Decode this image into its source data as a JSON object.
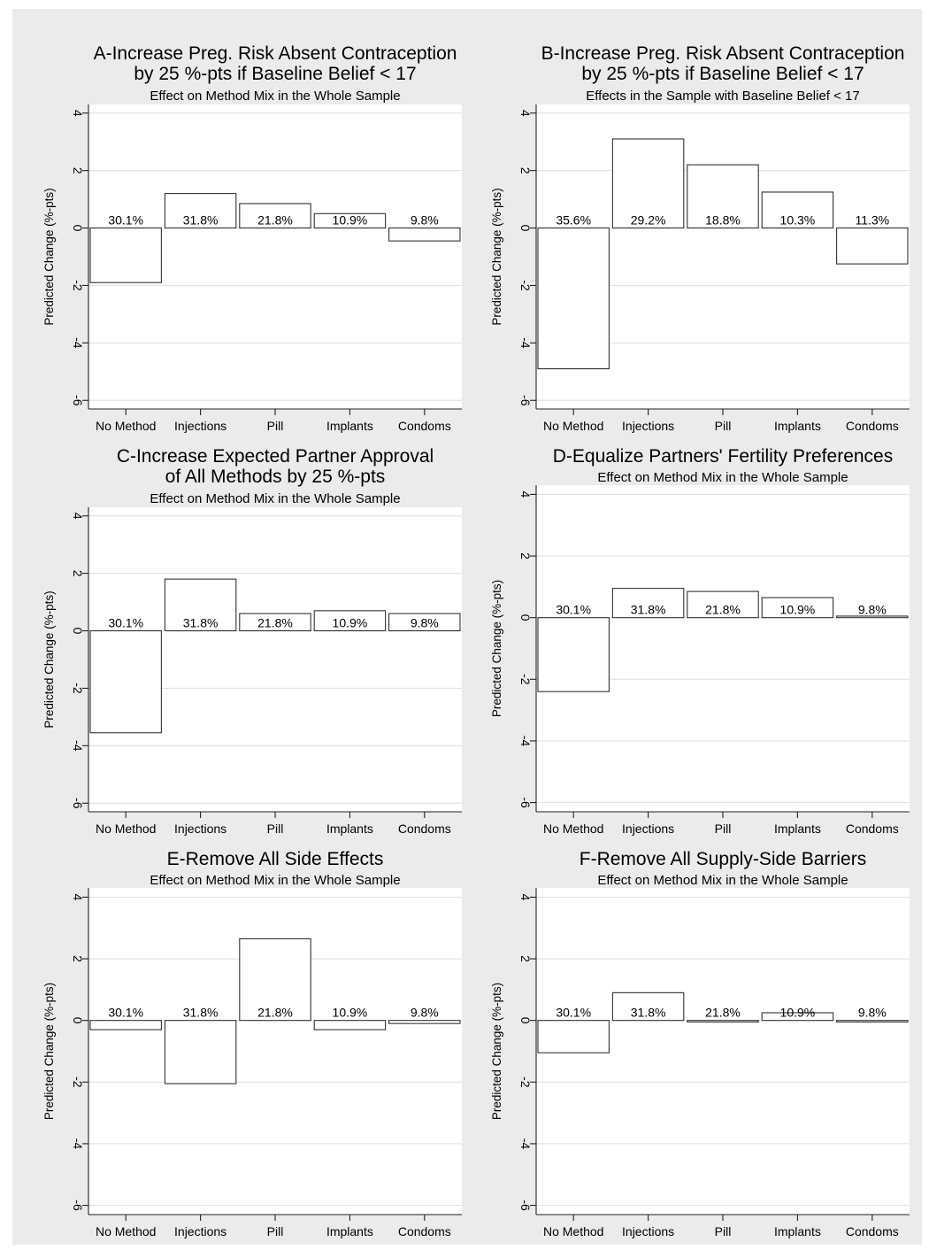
{
  "chart_data": [
    {
      "type": "bar",
      "title_lines": [
        "A-Increase Preg. Risk Absent Contraception",
        "by 25 %-pts if Baseline Belief < 17"
      ],
      "subtitle": "Effect on Method Mix in the Whole Sample",
      "ylabel": "Predicted Change (%-pts)",
      "categories": [
        "No Method",
        "Injections",
        "Pill",
        "Implants",
        "Condoms"
      ],
      "values": [
        -1.9,
        1.2,
        0.85,
        0.5,
        -0.45
      ],
      "bar_labels": [
        "30.1%",
        "31.8%",
        "21.8%",
        "10.9%",
        "9.8%"
      ],
      "ylim": [
        -6,
        4
      ],
      "yticks": [
        "-6",
        "-4",
        "-2",
        "0",
        "2",
        "4"
      ],
      "grid": true
    },
    {
      "type": "bar",
      "title_lines": [
        "B-Increase Preg. Risk Absent Contraception",
        "by 25 %-pts if Baseline Belief < 17"
      ],
      "subtitle": "Effects in the Sample with Baseline Belief < 17",
      "ylabel": "Predicted Change (%-pts)",
      "categories": [
        "No Method",
        "Injections",
        "Pill",
        "Implants",
        "Condoms"
      ],
      "values": [
        -4.9,
        3.1,
        2.2,
        1.25,
        -1.25
      ],
      "bar_labels": [
        "35.6%",
        "29.2%",
        "18.8%",
        "10.3%",
        "11.3%"
      ],
      "ylim": [
        -6,
        4
      ],
      "yticks": [
        "-6",
        "-4",
        "-2",
        "0",
        "2",
        "4"
      ],
      "grid": true
    },
    {
      "type": "bar",
      "title_lines": [
        "C-Increase Expected Partner Approval",
        "of All Methods by 25 %-pts"
      ],
      "subtitle": "Effect on Method Mix in the Whole Sample",
      "ylabel": "Predicted Change (%-pts)",
      "categories": [
        "No Method",
        "Injections",
        "Pill",
        "Implants",
        "Condoms"
      ],
      "values": [
        -3.55,
        1.8,
        0.6,
        0.7,
        0.6
      ],
      "bar_labels": [
        "30.1%",
        "31.8%",
        "21.8%",
        "10.9%",
        "9.8%"
      ],
      "ylim": [
        -6,
        4
      ],
      "yticks": [
        "-6",
        "-4",
        "-2",
        "0",
        "2",
        "4"
      ],
      "grid": true
    },
    {
      "type": "bar",
      "title_lines": [
        "D-Equalize Partners' Fertility Preferences"
      ],
      "subtitle": "Effect on Method Mix in the Whole Sample",
      "ylabel": "Predicted Change (%-pts)",
      "categories": [
        "No Method",
        "Injections",
        "Pill",
        "Implants",
        "Condoms"
      ],
      "values": [
        -2.4,
        0.95,
        0.85,
        0.65,
        0.05
      ],
      "bar_labels": [
        "30.1%",
        "31.8%",
        "21.8%",
        "10.9%",
        "9.8%"
      ],
      "ylim": [
        -6,
        4
      ],
      "yticks": [
        "-6",
        "-4",
        "-2",
        "0",
        "2",
        "4"
      ],
      "grid": true
    },
    {
      "type": "bar",
      "title_lines": [
        "E-Remove All Side Effects"
      ],
      "subtitle": "Effect on Method Mix in the Whole Sample",
      "ylabel": "Predicted Change (%-pts)",
      "categories": [
        "No Method",
        "Injections",
        "Pill",
        "Implants",
        "Condoms"
      ],
      "values": [
        -0.3,
        -2.05,
        2.65,
        -0.3,
        -0.1
      ],
      "bar_labels": [
        "30.1%",
        "31.8%",
        "21.8%",
        "10.9%",
        "9.8%"
      ],
      "ylim": [
        -6,
        4
      ],
      "yticks": [
        "-6",
        "-4",
        "-2",
        "0",
        "2",
        "4"
      ],
      "grid": true
    },
    {
      "type": "bar",
      "title_lines": [
        "F-Remove All Supply-Side Barriers"
      ],
      "subtitle": "Effect on Method Mix in the Whole Sample",
      "ylabel": "Predicted Change (%-pts)",
      "categories": [
        "No Method",
        "Injections",
        "Pill",
        "Implants",
        "Condoms"
      ],
      "values": [
        -1.05,
        0.9,
        -0.05,
        0.25,
        -0.05
      ],
      "bar_labels": [
        "30.1%",
        "31.8%",
        "21.8%",
        "10.9%",
        "9.8%"
      ],
      "ylim": [
        -6,
        4
      ],
      "yticks": [
        "-6",
        "-4",
        "-2",
        "0",
        "2",
        "4"
      ],
      "grid": true
    }
  ]
}
